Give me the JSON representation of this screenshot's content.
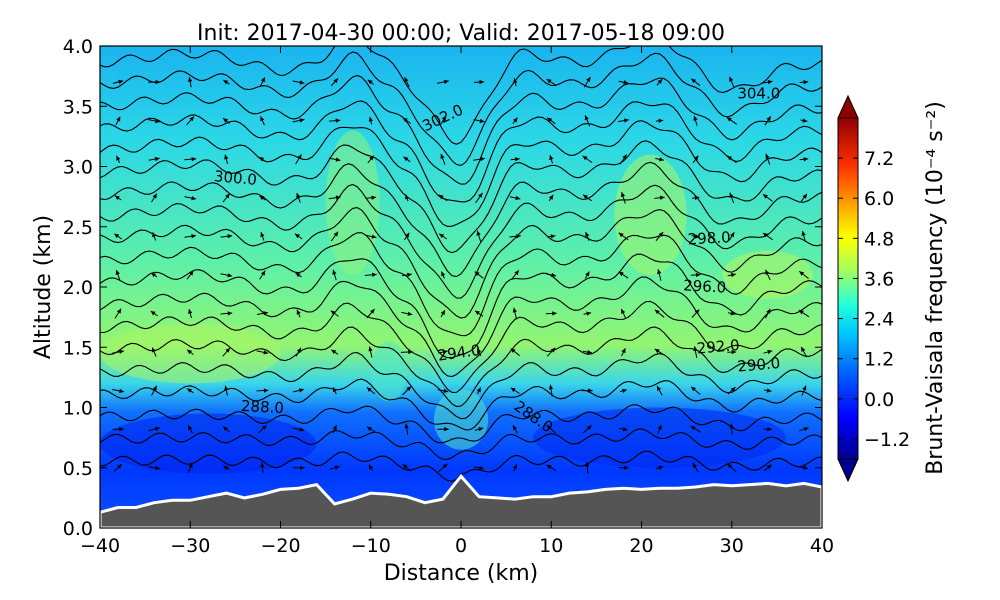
{
  "chart_data": {
    "type": "heatmap",
    "title": "Init: 2017-04-30 00:00; Valid: 2017-05-18 09:00",
    "xlabel": "Distance (km)",
    "ylabel": "Altitude (km)",
    "xlim": [
      -40,
      40
    ],
    "ylim": [
      0.0,
      4.0
    ],
    "xticks": [
      "−40",
      "−30",
      "−20",
      "−10",
      "0",
      "10",
      "20",
      "30",
      "40"
    ],
    "yticks": [
      "0.0",
      "0.5",
      "1.0",
      "1.5",
      "2.0",
      "2.5",
      "3.0",
      "3.5",
      "4.0"
    ],
    "colorbar": {
      "label": "Brunt-Vaisala frequency (10⁻⁴ s⁻²)",
      "ticks": [
        "−1.2",
        "0.0",
        "1.2",
        "2.4",
        "3.6",
        "4.8",
        "6.0",
        "7.2"
      ],
      "range": [
        -1.8,
        8.4
      ],
      "extend": "both",
      "colormap": "jet"
    },
    "contour_labels": [
      "304.0",
      "302.0",
      "300.0",
      "298.0",
      "296.0",
      "294.0",
      "292.0",
      "290.0",
      "288.0",
      "288.0"
    ],
    "isentropes": {
      "variable": "potential temperature (K)",
      "min": 286,
      "max": 304,
      "interval": 1
    },
    "terrain": {
      "x": [
        -40,
        -38,
        -36,
        -34,
        -32,
        -30,
        -28,
        -26,
        -24,
        -22,
        -20,
        -18,
        -16,
        -14,
        -12,
        -10,
        -8,
        -6,
        -4,
        -2,
        0,
        2,
        4,
        6,
        8,
        10,
        12,
        14,
        16,
        18,
        20,
        22,
        24,
        26,
        28,
        30,
        32,
        34,
        36,
        38,
        40
      ],
      "height_km": [
        0.13,
        0.17,
        0.17,
        0.21,
        0.23,
        0.23,
        0.26,
        0.29,
        0.25,
        0.28,
        0.32,
        0.33,
        0.36,
        0.2,
        0.24,
        0.29,
        0.28,
        0.26,
        0.21,
        0.24,
        0.43,
        0.26,
        0.25,
        0.24,
        0.26,
        0.26,
        0.29,
        0.3,
        0.32,
        0.33,
        0.32,
        0.33,
        0.33,
        0.34,
        0.36,
        0.35,
        0.36,
        0.37,
        0.35,
        0.37,
        0.34
      ]
    },
    "colors": {
      "terrain": "#555555",
      "terrain_outline": "#ffffff",
      "contour": "#000000"
    },
    "grid": false
  }
}
